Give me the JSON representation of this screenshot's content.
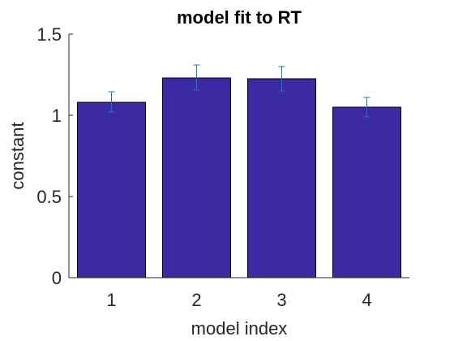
{
  "chart_data": {
    "type": "bar",
    "title": "model fit to RT",
    "xlabel": "model index",
    "ylabel": "constant",
    "categories": [
      "1",
      "2",
      "3",
      "4"
    ],
    "values": [
      1.08,
      1.23,
      1.225,
      1.05
    ],
    "error_low": [
      1.02,
      1.155,
      1.15,
      0.99
    ],
    "error_high": [
      1.145,
      1.31,
      1.3,
      1.11
    ],
    "ylim": [
      0,
      1.5
    ],
    "yticks": [
      0,
      0.5,
      1,
      1.5
    ],
    "ytick_labels": [
      "0",
      "0.5",
      "1",
      "1.5"
    ],
    "grid": false,
    "colors": {
      "bar": "#3b2aa3",
      "error": "#1f77b4",
      "axis": "#262626"
    }
  }
}
